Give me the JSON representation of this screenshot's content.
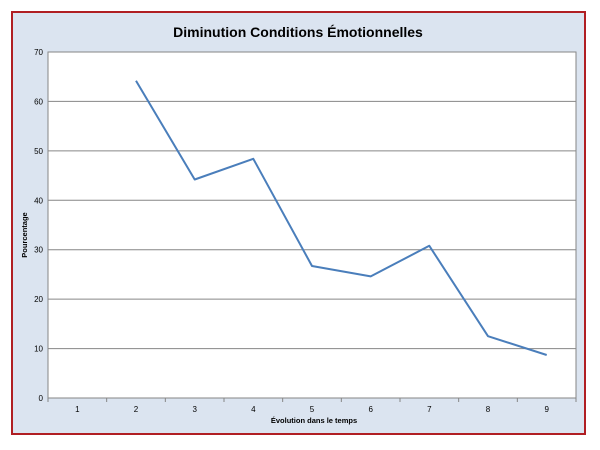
{
  "chart_data": {
    "type": "line",
    "title": "Diminution Conditions Émotionnelles",
    "xlabel": "Évolution  dans le temps",
    "ylabel": "Pourcentage",
    "categories": [
      "1",
      "2",
      "3",
      "4",
      "5",
      "6",
      "7",
      "8",
      "9"
    ],
    "series": [
      {
        "values": [
          null,
          64.2,
          44.2,
          48.4,
          26.7,
          24.6,
          30.8,
          12.5,
          8.7
        ],
        "color": "#4a7ebb"
      }
    ],
    "ylim": [
      0,
      70
    ],
    "yticks": [
      0,
      10,
      20,
      30,
      40,
      50,
      60,
      70
    ],
    "grid": true,
    "legend": "none",
    "colors": {
      "frame_border": "#b01e23",
      "frame_background": "#dbe4f0",
      "plot_background": "#ffffff",
      "gridline": "#868686"
    }
  }
}
